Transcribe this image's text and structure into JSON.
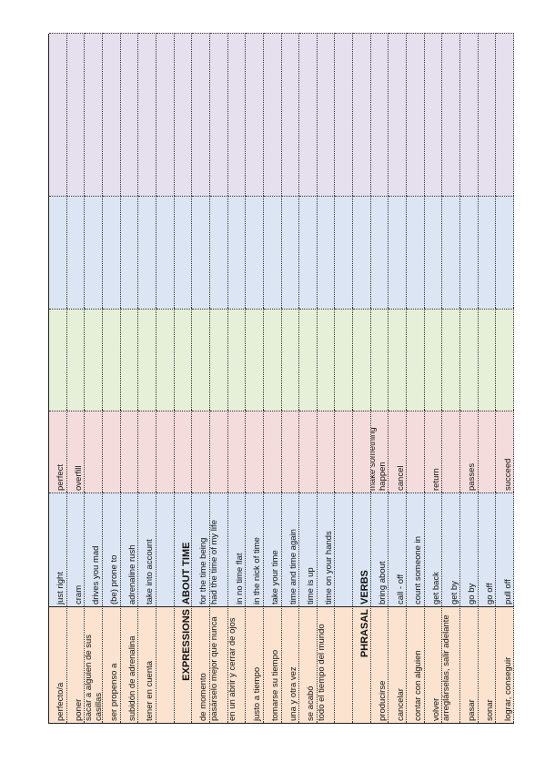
{
  "rows": [
    [
      "perfecto/a",
      "just right",
      "perfect",
      "",
      "",
      ""
    ],
    [
      "poner",
      "cram",
      "overfill",
      "",
      "",
      ""
    ],
    [
      "sacar a alguien de sus casillas",
      "drives you mad",
      "",
      "",
      "",
      ""
    ],
    [
      "ser propenso a",
      "(be) prone to",
      "",
      "",
      "",
      ""
    ],
    [
      "subidón de adrenalina",
      "adrenaline rush",
      "",
      "",
      "",
      ""
    ],
    [
      "tener en cuenta",
      "take into account",
      "",
      "",
      "",
      ""
    ],
    [
      "",
      "",
      "",
      "",
      "",
      ""
    ],
    [
      "EXPRESSIONS",
      "ABOUT TIME",
      "",
      "",
      "",
      ""
    ],
    [
      "de momento",
      "for the time being",
      "",
      "",
      "",
      ""
    ],
    [
      "pasárselo mejor que nunca",
      "had the time of my life",
      "",
      "",
      "",
      ""
    ],
    [
      "en un abrir y cerrar de ojos",
      "in no time flat",
      "",
      "",
      "",
      ""
    ],
    [
      "justo a tiempo",
      "in the nick of time",
      "",
      "",
      "",
      ""
    ],
    [
      "tomarse su tiempo",
      "take your time",
      "",
      "",
      "",
      ""
    ],
    [
      "una y otra vez",
      "time and time again",
      "",
      "",
      "",
      ""
    ],
    [
      "se acabó",
      "time is up",
      "",
      "",
      "",
      ""
    ],
    [
      "todo el tiempo del mundo",
      "time on your hands",
      "",
      "",
      "",
      ""
    ],
    [
      "",
      "",
      "",
      "",
      "",
      ""
    ],
    [
      "PHRASAL",
      "VERBS",
      "",
      "",
      "",
      ""
    ],
    [
      "producirse",
      "bring about",
      "make something happen",
      "",
      "",
      ""
    ],
    [
      "cancelar",
      "call - off",
      "cancel",
      "",
      "",
      ""
    ],
    [
      "contar con alguien",
      "count someone in",
      "",
      "",
      "",
      ""
    ],
    [
      "volver",
      "get back",
      "return",
      "",
      "",
      ""
    ],
    [
      "arreglárselas, salir adelante",
      "get by",
      "",
      "",
      "",
      ""
    ],
    [
      "pasar",
      "go by",
      "passes",
      "",
      "",
      ""
    ],
    [
      "sonar",
      "go off",
      "",
      "",
      "",
      ""
    ],
    [
      "lograr, conseguir",
      "pull off",
      "succeed",
      "",
      "",
      ""
    ]
  ]
}
